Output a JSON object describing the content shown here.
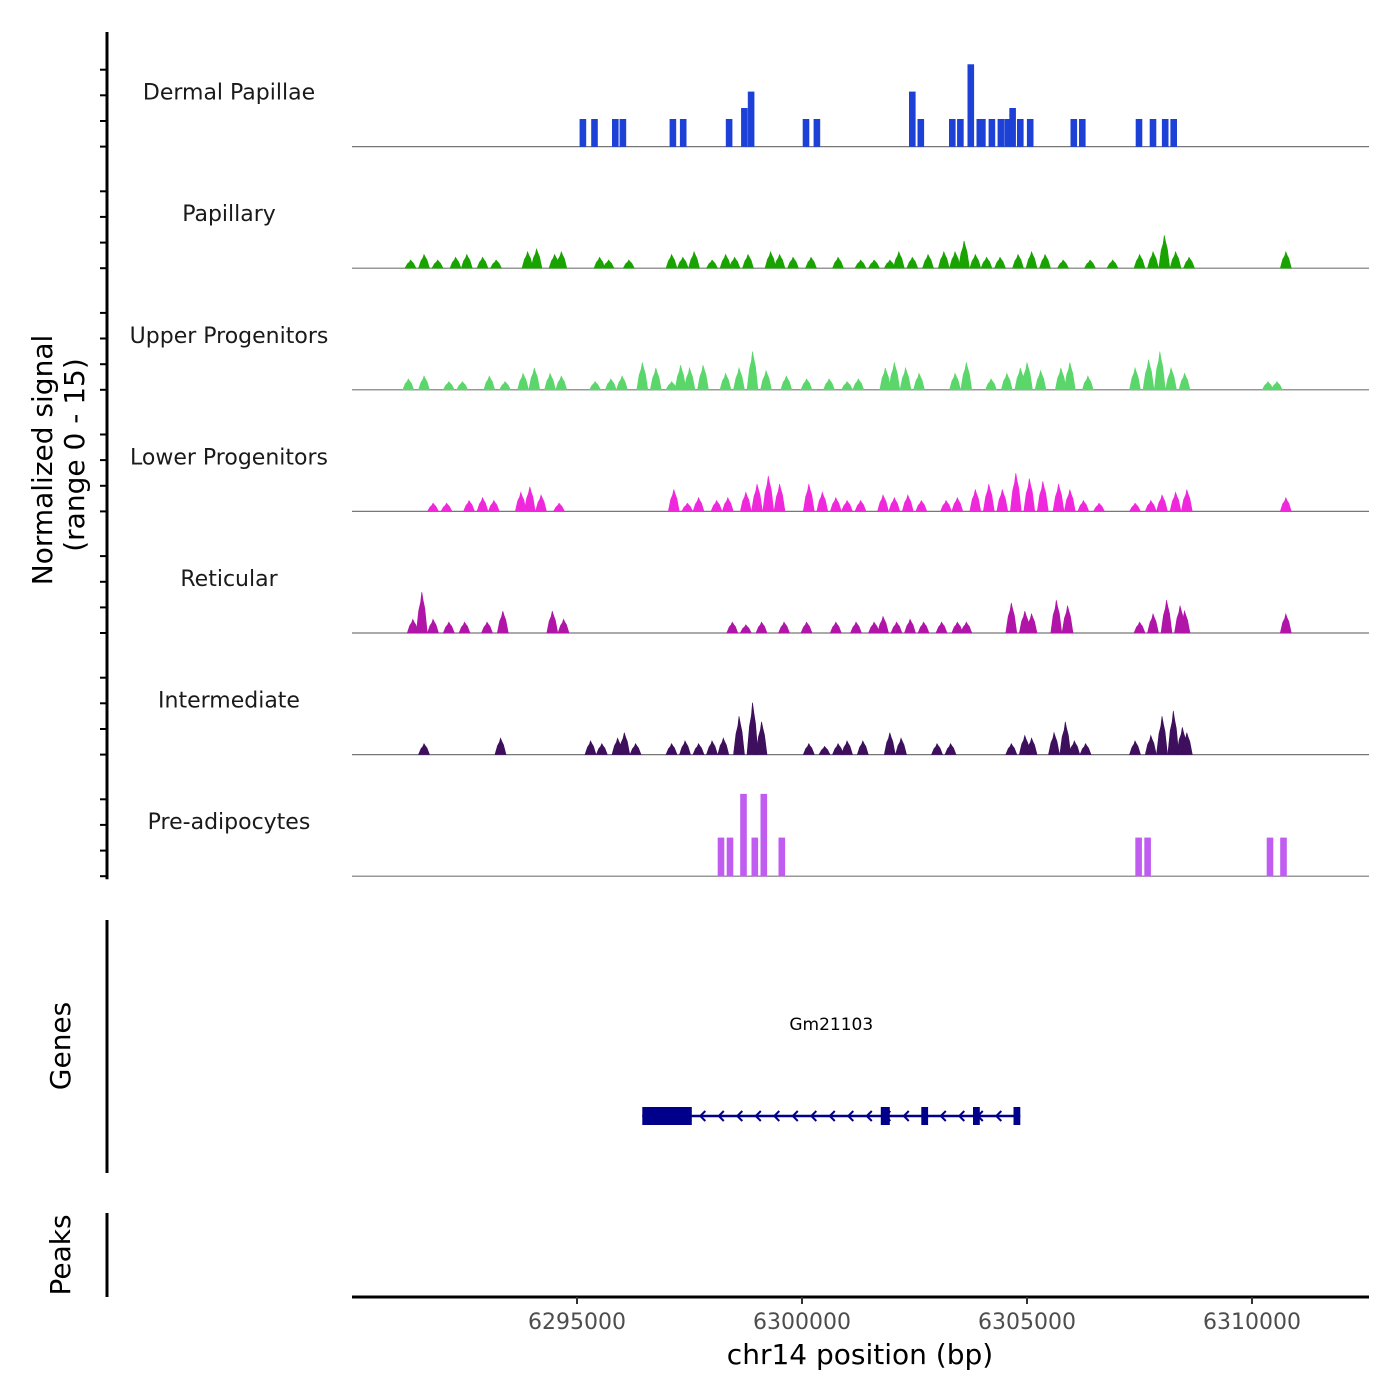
{
  "chart_data": {
    "type": "coverage",
    "xlabel": "chr14 position (bp)",
    "ylabel_line1": "Normalized signal",
    "ylabel_line2": "(range 0 - 15)",
    "genes_title": "Genes",
    "peaks_title": "Peaks",
    "xlim": [
      6290000,
      6312600
    ],
    "ylim": [
      0,
      15
    ],
    "x_ticks": [
      {
        "value": 6295000,
        "label": "6295000"
      },
      {
        "value": 6300000,
        "label": "6300000"
      },
      {
        "value": 6305000,
        "label": "6305000"
      },
      {
        "value": 6310000,
        "label": "6310000"
      }
    ],
    "tracks": [
      {
        "name": "Dermal Papillae",
        "color": "#1d41d6",
        "style": "spikes",
        "peaks": [
          [
            6295130,
            5
          ],
          [
            6295390,
            5
          ],
          [
            6295850,
            5
          ],
          [
            6296020,
            5
          ],
          [
            6297130,
            5
          ],
          [
            6297360,
            5
          ],
          [
            6298380,
            5
          ],
          [
            6298720,
            7
          ],
          [
            6298870,
            10
          ],
          [
            6300090,
            5
          ],
          [
            6300330,
            5
          ],
          [
            6302450,
            10
          ],
          [
            6302640,
            5
          ],
          [
            6303340,
            5
          ],
          [
            6303520,
            5
          ],
          [
            6303750,
            15
          ],
          [
            6303950,
            5
          ],
          [
            6304010,
            5
          ],
          [
            6304220,
            5
          ],
          [
            6304420,
            5
          ],
          [
            6304570,
            5
          ],
          [
            6304680,
            7
          ],
          [
            6304850,
            5
          ],
          [
            6305070,
            5
          ],
          [
            6306040,
            5
          ],
          [
            6306230,
            5
          ],
          [
            6307490,
            5
          ],
          [
            6307800,
            5
          ],
          [
            6308070,
            5
          ],
          [
            6308260,
            5
          ]
        ]
      },
      {
        "name": "Papillary",
        "color": "#18a300",
        "style": "area",
        "peaks": [
          [
            6291300,
            1.5
          ],
          [
            6291600,
            2.5
          ],
          [
            6291900,
            1.5
          ],
          [
            6292300,
            2
          ],
          [
            6292550,
            2.5
          ],
          [
            6292900,
            2
          ],
          [
            6293200,
            1.5
          ],
          [
            6293900,
            3
          ],
          [
            6294100,
            3.5
          ],
          [
            6294500,
            2.5
          ],
          [
            6294650,
            3
          ],
          [
            6295500,
            2
          ],
          [
            6295700,
            1.5
          ],
          [
            6296150,
            1.5
          ],
          [
            6297100,
            2.5
          ],
          [
            6297350,
            2
          ],
          [
            6297600,
            3
          ],
          [
            6298000,
            1.5
          ],
          [
            6298300,
            2.5
          ],
          [
            6298500,
            2
          ],
          [
            6298800,
            2.5
          ],
          [
            6299300,
            3
          ],
          [
            6299500,
            2.5
          ],
          [
            6299800,
            2
          ],
          [
            6300200,
            2
          ],
          [
            6300800,
            2
          ],
          [
            6301300,
            1.5
          ],
          [
            6301600,
            1.5
          ],
          [
            6301950,
            1.5
          ],
          [
            6302150,
            3
          ],
          [
            6302450,
            2
          ],
          [
            6302800,
            2.5
          ],
          [
            6303150,
            3
          ],
          [
            6303400,
            3
          ],
          [
            6303600,
            5
          ],
          [
            6303850,
            2.5
          ],
          [
            6304100,
            2
          ],
          [
            6304400,
            2
          ],
          [
            6304800,
            2.5
          ],
          [
            6305100,
            3
          ],
          [
            6305400,
            2.5
          ],
          [
            6305800,
            1.5
          ],
          [
            6306400,
            1.5
          ],
          [
            6306900,
            1.5
          ],
          [
            6307500,
            2.5
          ],
          [
            6307800,
            3
          ],
          [
            6308050,
            6
          ],
          [
            6308300,
            3
          ],
          [
            6308600,
            2
          ],
          [
            6310750,
            3
          ]
        ]
      },
      {
        "name": "Upper Progenitors",
        "color": "#5ad66a",
        "style": "area",
        "peaks": [
          [
            6291250,
            2
          ],
          [
            6291600,
            2.5
          ],
          [
            6292150,
            1.5
          ],
          [
            6292450,
            1.5
          ],
          [
            6293050,
            2.5
          ],
          [
            6293400,
            1.5
          ],
          [
            6293800,
            3
          ],
          [
            6294050,
            4
          ],
          [
            6294400,
            3
          ],
          [
            6294650,
            2.5
          ],
          [
            6295400,
            1.5
          ],
          [
            6295750,
            2
          ],
          [
            6296000,
            2.5
          ],
          [
            6296450,
            5
          ],
          [
            6296750,
            4
          ],
          [
            6297100,
            1.5
          ],
          [
            6297300,
            4.5
          ],
          [
            6297500,
            4
          ],
          [
            6297800,
            4.5
          ],
          [
            6298300,
            3
          ],
          [
            6298600,
            4
          ],
          [
            6298900,
            7
          ],
          [
            6299200,
            3.5
          ],
          [
            6299650,
            2.5
          ],
          [
            6300100,
            2
          ],
          [
            6300600,
            2
          ],
          [
            6301000,
            1.5
          ],
          [
            6301250,
            2
          ],
          [
            6301850,
            4
          ],
          [
            6302050,
            5
          ],
          [
            6302300,
            4
          ],
          [
            6302600,
            3
          ],
          [
            6303400,
            3
          ],
          [
            6303650,
            5
          ],
          [
            6304200,
            2
          ],
          [
            6304550,
            3
          ],
          [
            6304850,
            4
          ],
          [
            6305000,
            5
          ],
          [
            6305300,
            3.5
          ],
          [
            6305750,
            4
          ],
          [
            6305950,
            5
          ],
          [
            6306350,
            2.5
          ],
          [
            6307400,
            4
          ],
          [
            6307700,
            5.5
          ],
          [
            6307950,
            7
          ],
          [
            6308200,
            4
          ],
          [
            6308500,
            3
          ],
          [
            6310350,
            1.5
          ],
          [
            6310550,
            1.5
          ]
        ]
      },
      {
        "name": "Lower Progenitors",
        "color": "#f028dc",
        "style": "area",
        "peaks": [
          [
            6291800,
            1.5
          ],
          [
            6292100,
            1.5
          ],
          [
            6292600,
            2
          ],
          [
            6292900,
            2.5
          ],
          [
            6293150,
            2
          ],
          [
            6293750,
            3.5
          ],
          [
            6293950,
            4.5
          ],
          [
            6294200,
            3
          ],
          [
            6294600,
            1.5
          ],
          [
            6297150,
            4
          ],
          [
            6297450,
            1.5
          ],
          [
            6297700,
            2.5
          ],
          [
            6298100,
            2
          ],
          [
            6298350,
            2.5
          ],
          [
            6298750,
            3.5
          ],
          [
            6299000,
            5
          ],
          [
            6299250,
            6.5
          ],
          [
            6299500,
            5
          ],
          [
            6300150,
            5
          ],
          [
            6300450,
            3.5
          ],
          [
            6300750,
            2.5
          ],
          [
            6301000,
            2
          ],
          [
            6301300,
            2
          ],
          [
            6301800,
            3
          ],
          [
            6302050,
            2.5
          ],
          [
            6302350,
            3
          ],
          [
            6302650,
            2
          ],
          [
            6303200,
            2
          ],
          [
            6303450,
            2.5
          ],
          [
            6303850,
            4
          ],
          [
            6304150,
            5
          ],
          [
            6304450,
            4
          ],
          [
            6304750,
            7
          ],
          [
            6305050,
            6
          ],
          [
            6305350,
            5.5
          ],
          [
            6305700,
            5
          ],
          [
            6305950,
            4
          ],
          [
            6306250,
            2
          ],
          [
            6306600,
            1.5
          ],
          [
            6307400,
            1.5
          ],
          [
            6307750,
            2
          ],
          [
            6308000,
            3
          ],
          [
            6308300,
            3.5
          ],
          [
            6308550,
            4
          ],
          [
            6310750,
            2.5
          ]
        ]
      },
      {
        "name": "Reticular",
        "color": "#b015a8",
        "style": "area",
        "peaks": [
          [
            6291350,
            2.5
          ],
          [
            6291550,
            7.5
          ],
          [
            6291800,
            2.5
          ],
          [
            6292150,
            2
          ],
          [
            6292500,
            2
          ],
          [
            6293000,
            2
          ],
          [
            6293350,
            4
          ],
          [
            6294450,
            4
          ],
          [
            6294700,
            2.5
          ],
          [
            6298450,
            2
          ],
          [
            6298750,
            1.5
          ],
          [
            6299100,
            2
          ],
          [
            6299600,
            2
          ],
          [
            6300100,
            2
          ],
          [
            6300750,
            2
          ],
          [
            6301200,
            2
          ],
          [
            6301600,
            2
          ],
          [
            6301800,
            3
          ],
          [
            6302100,
            2
          ],
          [
            6302400,
            2.5
          ],
          [
            6302700,
            2
          ],
          [
            6303100,
            2
          ],
          [
            6303450,
            2
          ],
          [
            6303650,
            2
          ],
          [
            6304650,
            5.5
          ],
          [
            6304950,
            4
          ],
          [
            6305100,
            3.5
          ],
          [
            6305650,
            6
          ],
          [
            6305900,
            5
          ],
          [
            6307500,
            2
          ],
          [
            6307800,
            3.5
          ],
          [
            6308100,
            6
          ],
          [
            6308400,
            5
          ],
          [
            6308500,
            4
          ],
          [
            6310750,
            3.5
          ]
        ]
      },
      {
        "name": "Intermediate",
        "color": "#3d0f5c",
        "style": "area",
        "peaks": [
          [
            6291600,
            2
          ],
          [
            6293300,
            3
          ],
          [
            6295300,
            2.5
          ],
          [
            6295550,
            2
          ],
          [
            6295900,
            3
          ],
          [
            6296050,
            4
          ],
          [
            6296300,
            2
          ],
          [
            6297100,
            2
          ],
          [
            6297400,
            2.5
          ],
          [
            6297700,
            2
          ],
          [
            6298000,
            2.5
          ],
          [
            6298250,
            3
          ],
          [
            6298600,
            7
          ],
          [
            6298900,
            9.5
          ],
          [
            6299100,
            6
          ],
          [
            6300150,
            2
          ],
          [
            6300500,
            1.5
          ],
          [
            6300800,
            2
          ],
          [
            6301000,
            2.5
          ],
          [
            6301350,
            2.5
          ],
          [
            6301950,
            4
          ],
          [
            6302200,
            3
          ],
          [
            6303000,
            2
          ],
          [
            6303300,
            2
          ],
          [
            6304650,
            2
          ],
          [
            6304950,
            3.5
          ],
          [
            6305100,
            3
          ],
          [
            6305600,
            4
          ],
          [
            6305850,
            6
          ],
          [
            6306050,
            2.5
          ],
          [
            6306300,
            2
          ],
          [
            6307400,
            2.5
          ],
          [
            6307750,
            3.5
          ],
          [
            6308000,
            7
          ],
          [
            6308250,
            8
          ],
          [
            6308450,
            5
          ],
          [
            6308550,
            4
          ]
        ]
      },
      {
        "name": "Pre-adipocytes",
        "color": "#c05cf0",
        "style": "spikes",
        "peaks": [
          [
            6298200,
            7
          ],
          [
            6298400,
            7
          ],
          [
            6298700,
            15
          ],
          [
            6298950,
            7
          ],
          [
            6299150,
            15
          ],
          [
            6299550,
            7
          ],
          [
            6307480,
            7
          ],
          [
            6307680,
            7
          ],
          [
            6310400,
            7
          ],
          [
            6310700,
            7
          ]
        ]
      }
    ],
    "gene": {
      "name": "Gm21103",
      "strand": "-",
      "start": 6296450,
      "end": 6304850,
      "exons": [
        [
          6296450,
          6297550
        ],
        [
          6301750,
          6301950
        ],
        [
          6302650,
          6302800
        ],
        [
          6303800,
          6303950
        ],
        [
          6304700,
          6304850
        ]
      ],
      "color": "#00008b"
    }
  }
}
